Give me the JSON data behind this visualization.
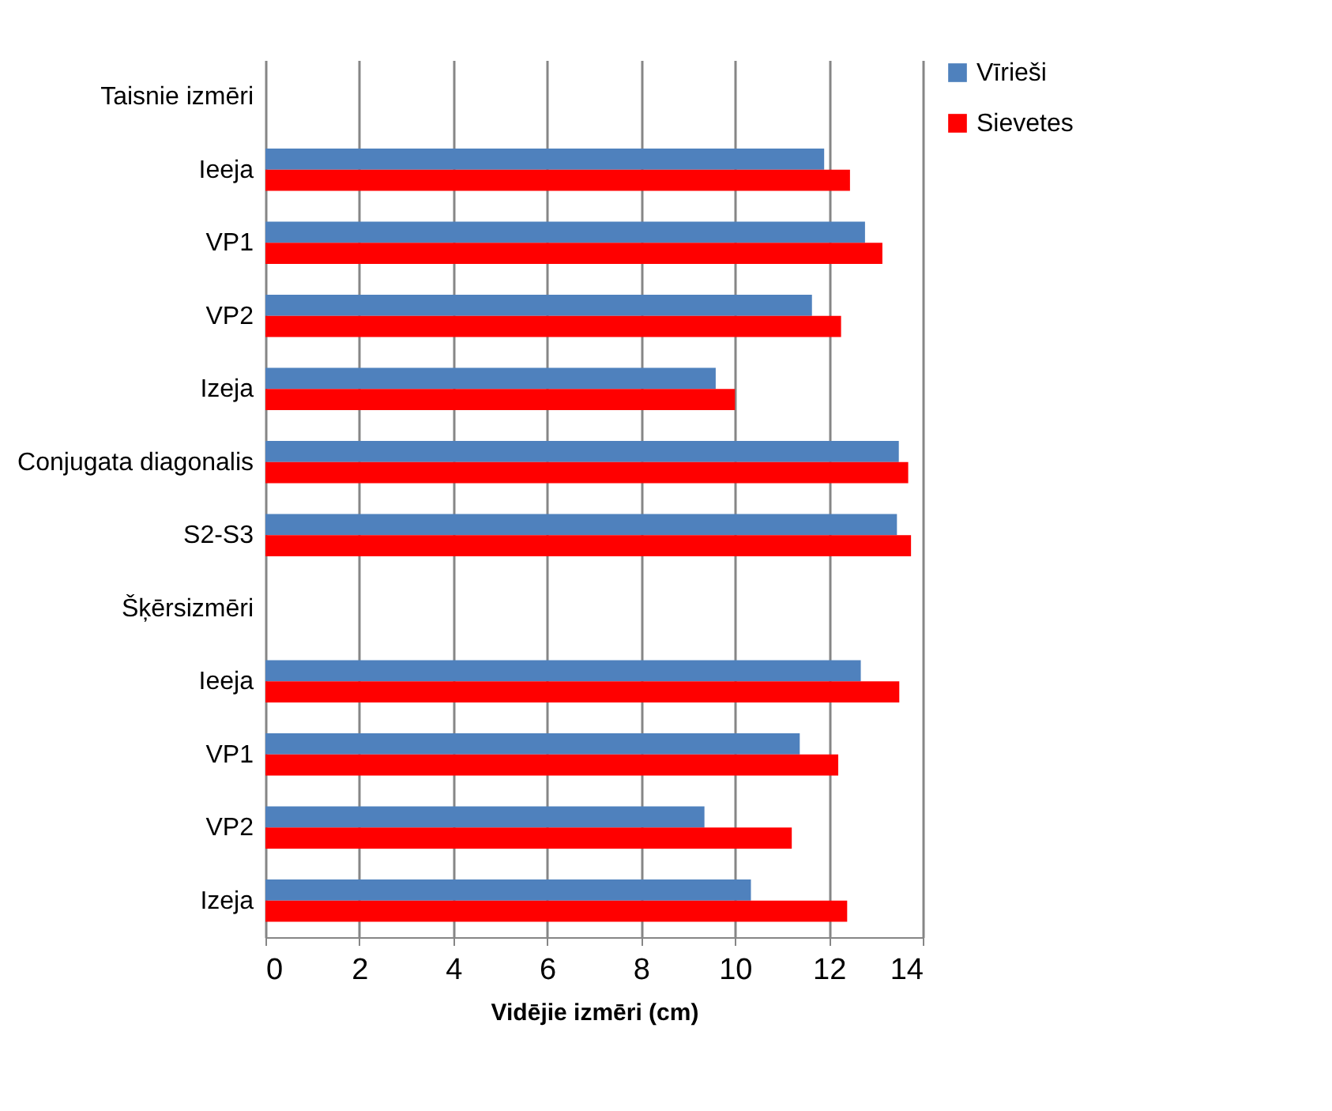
{
  "chart_data": {
    "type": "bar",
    "orientation": "horizontal",
    "xlabel": "Vidējie izmēri (cm)",
    "categories": [
      "Taisnie izmēri",
      "Ieeja",
      "VP1",
      "VP2",
      "Izeja",
      "Conjugata diagonalis",
      "S2-S3",
      "Šķērsizmēri",
      "Ieeja",
      "VP1",
      "VP2",
      "Izeja"
    ],
    "series": [
      {
        "name": "Vīrieši",
        "color": "#4f81bd",
        "values": [
          null,
          11.9,
          12.77,
          11.64,
          9.59,
          13.49,
          13.45,
          null,
          12.68,
          11.38,
          9.35,
          10.34
        ]
      },
      {
        "name": "Sievetes",
        "color": "#ff0000",
        "values": [
          null,
          12.45,
          13.14,
          12.26,
          10.0,
          13.69,
          13.75,
          null,
          13.5,
          12.2,
          11.21,
          12.39
        ]
      }
    ],
    "xlim": [
      0,
      14
    ],
    "xticks": [
      0,
      2,
      4,
      6,
      8,
      10,
      12,
      14
    ],
    "grid": "x",
    "legend": "right"
  }
}
